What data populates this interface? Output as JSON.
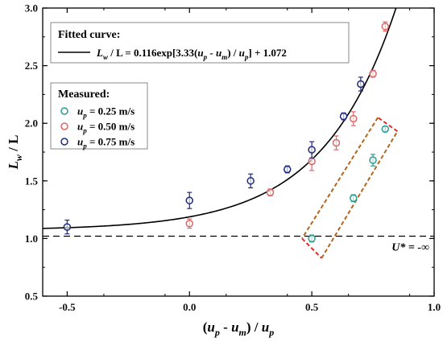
{
  "chart_data": {
    "type": "scatter",
    "xlim": [
      -0.6,
      1.0
    ],
    "ylim": [
      0.5,
      3.0
    ],
    "x_ticks": [
      "-0.5",
      "0.0",
      "0.5",
      "1.0"
    ],
    "y_ticks": [
      "0.5",
      "1.0",
      "1.5",
      "2.0",
      "2.5",
      "3.0"
    ],
    "x_tick_values": [
      -0.5,
      0.0,
      0.5,
      1.0
    ],
    "y_tick_values": [
      0.5,
      1.0,
      1.5,
      2.0,
      2.5,
      3.0
    ],
    "xlabel": "(u_p - u_m) / u_p",
    "ylabel": "L_w / L",
    "grid": false,
    "legend_placement": "upper-left",
    "fit": {
      "legend_title": "Fitted curve:",
      "label": "L_w / L = 0.116exp[3.33(u_p - u_m) / u_p] + 1.072",
      "a": 0.116,
      "b": 3.33,
      "c": 1.072,
      "color": "#000000"
    },
    "measured_title": "Measured:",
    "series": [
      {
        "name": "u_p = 0.25 m/s",
        "color": "#2a9d8f",
        "points": [
          {
            "x": 0.5,
            "y": 1.0,
            "err": 0.03
          },
          {
            "x": 0.67,
            "y": 1.35,
            "err": 0.03
          },
          {
            "x": 0.75,
            "y": 1.68,
            "err": 0.05
          },
          {
            "x": 0.8,
            "y": 1.95,
            "err": 0.02
          }
        ]
      },
      {
        "name": "u_p = 0.50 m/s",
        "color": "#e06666",
        "points": [
          {
            "x": 0.0,
            "y": 1.13,
            "err": 0.04
          },
          {
            "x": 0.33,
            "y": 1.4,
            "err": 0.03
          },
          {
            "x": 0.5,
            "y": 1.67,
            "err": 0.08
          },
          {
            "x": 0.6,
            "y": 1.83,
            "err": 0.06
          },
          {
            "x": 0.67,
            "y": 2.04,
            "err": 0.06
          },
          {
            "x": 0.75,
            "y": 2.43,
            "err": 0.03
          },
          {
            "x": 0.8,
            "y": 2.84,
            "err": 0.04
          }
        ]
      },
      {
        "name": "u_p = 0.75 m/s",
        "color": "#1f2a7a",
        "points": [
          {
            "x": -0.5,
            "y": 1.1,
            "err": 0.06
          },
          {
            "x": 0.0,
            "y": 1.33,
            "err": 0.07
          },
          {
            "x": 0.25,
            "y": 1.5,
            "err": 0.06
          },
          {
            "x": 0.4,
            "y": 1.6,
            "err": 0.03
          },
          {
            "x": 0.5,
            "y": 1.77,
            "err": 0.07
          },
          {
            "x": 0.63,
            "y": 2.06,
            "err": 0.03
          },
          {
            "x": 0.7,
            "y": 2.34,
            "err": 0.06
          }
        ]
      }
    ],
    "reference_line": {
      "y": 1.02,
      "label": "U* = -∞",
      "style": "dashed",
      "color": "#000000"
    },
    "highlight_box": {
      "corners": [
        [
          0.46,
          1.0
        ],
        [
          0.54,
          0.83
        ],
        [
          0.85,
          1.93
        ],
        [
          0.77,
          2.05
        ]
      ],
      "colors": [
        "#b5651d",
        "#e32b2b"
      ]
    }
  }
}
